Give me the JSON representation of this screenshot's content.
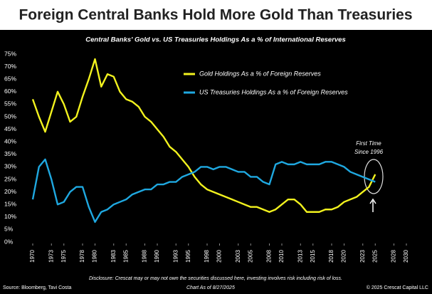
{
  "chart_data": {
    "type": "line",
    "title": "Foreign Central Banks Hold More Gold Than Treasuries",
    "subtitle": "Central Banks' Gold vs. US Treasuries Holdings As a % of International Reserves",
    "annotation": "First Time Since 1996",
    "disclosure": "Disclosure: Crescat may or may not own the securities discussed here, investing involves risk including risk of loss.",
    "source": "Source: Bloomberg, Tavi Costa",
    "chart_date": "Chart As of 8/27/2025",
    "copyright": "© 2025 Crescat Capital LLC",
    "legend": "upper right",
    "x": [
      1970,
      1971,
      1972,
      1973,
      1974,
      1975,
      1976,
      1977,
      1978,
      1979,
      1980,
      1981,
      1982,
      1983,
      1984,
      1985,
      1986,
      1987,
      1988,
      1989,
      1990,
      1991,
      1992,
      1993,
      1994,
      1995,
      1996,
      1997,
      1998,
      1999,
      2000,
      2001,
      2002,
      2003,
      2004,
      2005,
      2006,
      2007,
      2008,
      2009,
      2010,
      2011,
      2012,
      2013,
      2014,
      2015,
      2016,
      2017,
      2018,
      2019,
      2020,
      2021,
      2022,
      2023,
      2024,
      2025
    ],
    "series": [
      {
        "name": "Gold Holdings As a % of Foreign Reserves",
        "color": "#f2f21e",
        "values": [
          57,
          50,
          44,
          52,
          60,
          55,
          48,
          50,
          58,
          65,
          73,
          62,
          67,
          66,
          60,
          57,
          56,
          54,
          50,
          48,
          45,
          42,
          38,
          36,
          33,
          30,
          26,
          23,
          21,
          20,
          19,
          18,
          17,
          16,
          15,
          14,
          14,
          13,
          12,
          13,
          15,
          17,
          17,
          15,
          12,
          12,
          12,
          13,
          13,
          14,
          16,
          17,
          18,
          20,
          22,
          27
        ]
      },
      {
        "name": "US Treasuries Holdings As a % of Foreign Reserves",
        "color": "#1fa8e0",
        "values": [
          17,
          30,
          33,
          25,
          15,
          16,
          20,
          22,
          22,
          14,
          8,
          12,
          13,
          15,
          16,
          17,
          19,
          20,
          21,
          21,
          23,
          23,
          24,
          24,
          26,
          27,
          28,
          30,
          30,
          29,
          30,
          30,
          29,
          28,
          28,
          26,
          26,
          24,
          23,
          31,
          32,
          31,
          31,
          32,
          31,
          31,
          31,
          32,
          32,
          31,
          30,
          28,
          27,
          26,
          25,
          24
        ]
      }
    ],
    "xlim": [
      1969,
      2031
    ],
    "xticks": [
      1970,
      1973,
      1975,
      1978,
      1980,
      1983,
      1985,
      1988,
      1990,
      1993,
      1995,
      1998,
      2000,
      2003,
      2005,
      2008,
      2010,
      2013,
      2015,
      2018,
      2020,
      2023,
      2025,
      2028,
      2030
    ],
    "ylim": [
      0,
      75
    ],
    "yticks": [
      {
        "value": 0,
        "label": "0%"
      },
      {
        "value": 5,
        "label": "5%"
      },
      {
        "value": 10,
        "label": "10%"
      },
      {
        "value": 15,
        "label": "15%"
      },
      {
        "value": 20,
        "label": "20%"
      },
      {
        "value": 25,
        "label": "25%"
      },
      {
        "value": 30,
        "label": "30%"
      },
      {
        "value": 35,
        "label": "35%"
      },
      {
        "value": 40,
        "label": "40%"
      },
      {
        "value": 45,
        "label": "45%"
      },
      {
        "value": 50,
        "label": "50%"
      },
      {
        "value": 55,
        "label": "55%"
      },
      {
        "value": 60,
        "label": "60%"
      },
      {
        "value": 65,
        "label": "65%"
      },
      {
        "value": 70,
        "label": "70%"
      },
      {
        "value": 75,
        "label": "75%"
      }
    ]
  }
}
